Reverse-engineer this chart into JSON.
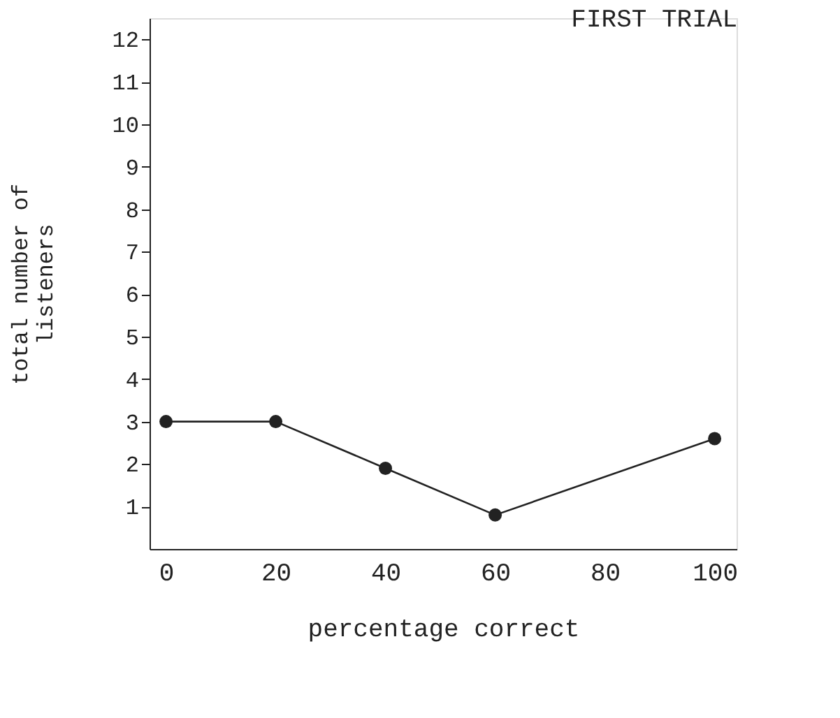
{
  "chart_data": {
    "type": "line",
    "title": "FIRST TRIAL",
    "xlabel": "percentage correct",
    "ylabel": "total number of\nlisteners",
    "x": [
      0,
      20,
      40,
      60,
      100
    ],
    "series": [
      {
        "color": "#222222",
        "values": [
          3,
          3,
          1.9,
          0.8,
          2.6
        ]
      }
    ],
    "xlim": [
      -3,
      104
    ],
    "xticks": [
      0,
      20,
      40,
      60,
      80,
      100
    ],
    "ylim": [
      0,
      12.5
    ],
    "yticks": [
      1,
      2,
      3,
      4,
      5,
      6,
      7,
      8,
      9,
      10,
      11,
      12
    ],
    "marker": "circle",
    "line_style": "solid",
    "grid": false,
    "legend": false
  }
}
